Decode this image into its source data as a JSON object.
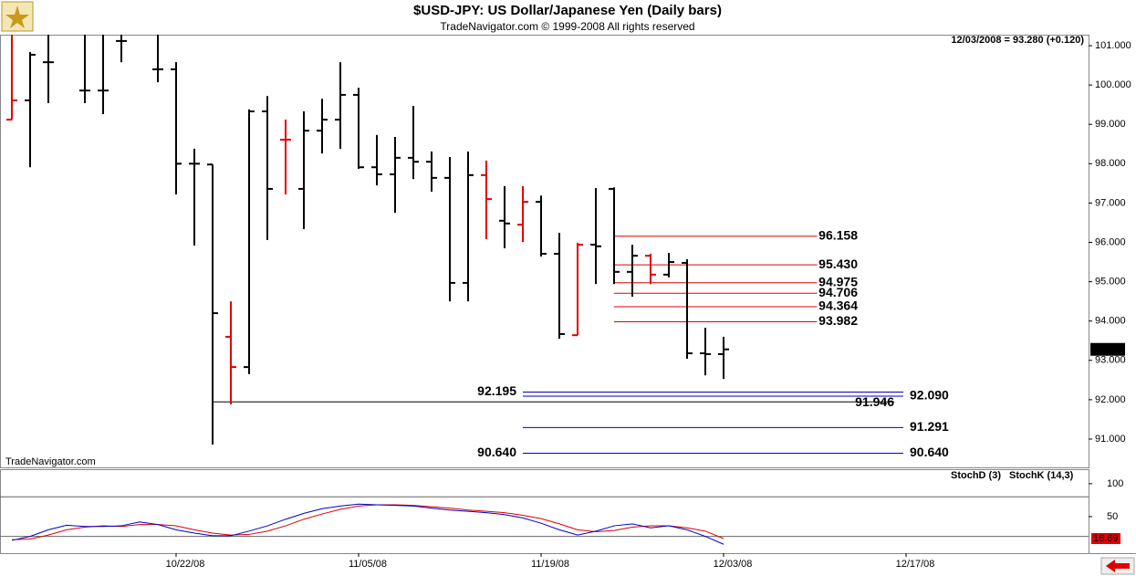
{
  "chart_data": {
    "type": "ohlc",
    "title": "$USD-JPY:  US Dollar/Japanese Yen  (Daily bars)",
    "subtitle": "TradeNavigator.com © 1999-2008 All rights reserved",
    "watermark": "TradeNavigator.com",
    "header_quote": "12/03/2008 = 93.280 (+0.120)",
    "last_price": {
      "value": 93.28,
      "label": "93.280"
    },
    "x": [
      0,
      1,
      2,
      4,
      5,
      6,
      8,
      9,
      10,
      11,
      12,
      13,
      14,
      15,
      16,
      17,
      18,
      19,
      20,
      21,
      22,
      23,
      24,
      25,
      26,
      27,
      28,
      29,
      30,
      31,
      32,
      33,
      34,
      35,
      36,
      37,
      38,
      39
    ],
    "open": [
      99.12,
      99.61,
      100.58,
      99.86,
      99.86,
      101.12,
      100.4,
      100.4,
      98.0,
      97.98,
      93.6,
      92.83,
      99.33,
      98.61,
      97.36,
      98.84,
      99.12,
      99.75,
      97.91,
      97.73,
      98.15,
      98.05,
      97.64,
      94.97,
      97.71,
      96.55,
      96.45,
      97.03,
      95.71,
      93.64,
      95.94,
      97.36,
      95.25,
      95.66,
      95.18,
      95.48,
      93.18,
      93.16
    ],
    "high": [
      101.28,
      100.84,
      101.28,
      101.28,
      101.28,
      101.28,
      101.28,
      100.58,
      98.38,
      97.98,
      94.5,
      99.38,
      99.72,
      99.12,
      99.33,
      99.65,
      100.58,
      99.93,
      98.73,
      98.68,
      99.47,
      98.31,
      98.17,
      98.31,
      98.08,
      97.43,
      97.43,
      97.19,
      96.24,
      95.99,
      97.38,
      97.4,
      95.94,
      95.71,
      95.73,
      95.57,
      93.83,
      93.6
    ],
    "low": [
      99.12,
      97.91,
      99.54,
      99.54,
      99.26,
      100.58,
      100.07,
      97.22,
      95.92,
      90.86,
      91.88,
      92.65,
      96.06,
      97.22,
      96.34,
      98.26,
      98.38,
      97.87,
      97.45,
      96.75,
      97.61,
      97.29,
      94.5,
      94.5,
      96.08,
      95.85,
      96.01,
      95.64,
      93.55,
      93.64,
      94.94,
      94.94,
      94.62,
      94.94,
      95.11,
      93.04,
      92.62,
      92.53
    ],
    "close": [
      99.61,
      100.77,
      100.58,
      99.86,
      99.86,
      101.12,
      100.4,
      98.0,
      98.0,
      94.2,
      92.83,
      99.33,
      97.36,
      98.61,
      98.84,
      99.12,
      99.75,
      97.91,
      97.73,
      98.15,
      98.05,
      97.64,
      94.97,
      97.71,
      97.1,
      96.48,
      97.03,
      95.71,
      93.67,
      95.94,
      95.9,
      95.25,
      95.66,
      95.18,
      95.5,
      93.18,
      93.16,
      93.28
    ],
    "colors": [
      "#e00000",
      "#000000",
      "#000000",
      "#000000",
      "#000000",
      "#000000",
      "#000000",
      "#000000",
      "#000000",
      "#000000",
      "#e00000",
      "#000000",
      "#000000",
      "#e00000",
      "#000000",
      "#000000",
      "#000000",
      "#000000",
      "#000000",
      "#000000",
      "#000000",
      "#000000",
      "#000000",
      "#000000",
      "#e00000",
      "#000000",
      "#e00000",
      "#000000",
      "#000000",
      "#e00000",
      "#000000",
      "#000000",
      "#000000",
      "#e00000",
      "#000000",
      "#000000",
      "#000000",
      "#000000"
    ],
    "ylim": [
      90.28,
      101.28
    ],
    "yticks": [
      {
        "value": 91,
        "label": "91.000"
      },
      {
        "value": 92,
        "label": "92.000"
      },
      {
        "value": 93,
        "label": "93.000"
      },
      {
        "value": 94,
        "label": "94.000"
      },
      {
        "value": 95,
        "label": "95.000"
      },
      {
        "value": 96,
        "label": "96.000"
      },
      {
        "value": 97,
        "label": "97.000"
      },
      {
        "value": 98,
        "label": "98.000"
      },
      {
        "value": 99,
        "label": "99.000"
      },
      {
        "value": 100,
        "label": "100.000"
      },
      {
        "value": 101,
        "label": "101.000"
      }
    ],
    "xticks": [
      {
        "value": 9,
        "label": "10/22/08"
      },
      {
        "value": 19,
        "label": "11/05/08"
      },
      {
        "value": 29,
        "label": "11/19/08"
      },
      {
        "value": 39,
        "label": "12/03/08"
      },
      {
        "value": 49,
        "label": "12/17/08"
      }
    ],
    "levels": [
      {
        "value": 96.158,
        "label": "96.158",
        "color": "#e00000",
        "group": "red",
        "side": "right"
      },
      {
        "value": 95.43,
        "label": "95.430",
        "color": "#e00000",
        "group": "red",
        "side": "right"
      },
      {
        "value": 94.975,
        "label": "94.975",
        "color": "#e00000",
        "group": "red",
        "side": "right"
      },
      {
        "value": 94.706,
        "label": "94.706",
        "color": "#e00000",
        "group": "red",
        "side": "right"
      },
      {
        "value": 94.364,
        "label": "94.364",
        "color": "#e00000",
        "group": "red",
        "side": "right"
      },
      {
        "value": 93.982,
        "label": "93.982",
        "color": "#e00000",
        "group": "red",
        "side": "right"
      },
      {
        "value": 92.195,
        "label": "92.195",
        "color": "#0000cc",
        "group": "blue",
        "side": "left"
      },
      {
        "value": 92.09,
        "label": "92.090",
        "color": "#0000cc",
        "group": "blue",
        "side": "right"
      },
      {
        "value": 91.946,
        "label": "91.946",
        "color": "#000000",
        "group": "black",
        "side": "right"
      },
      {
        "value": 91.291,
        "label": "91.291",
        "color": "#0000cc",
        "group": "blue",
        "side": "right"
      },
      {
        "value": 90.64,
        "label": "90.640",
        "color": "#0000cc",
        "group": "blue",
        "side": "both"
      }
    ],
    "stoch": {
      "x": [
        0,
        1,
        2,
        3,
        4,
        5,
        6,
        7,
        8,
        9,
        10,
        11,
        12,
        13,
        14,
        15,
        16,
        17,
        18,
        19,
        20,
        21,
        22,
        23,
        24,
        25,
        26,
        27,
        28,
        29,
        30,
        31,
        32,
        33,
        34,
        35,
        36,
        37,
        38,
        39
      ],
      "ylim": [
        -5.5,
        122
      ],
      "yticks": [
        50,
        100
      ],
      "reference_lines": [
        80,
        20
      ],
      "series": [
        {
          "name": "StochD (3)",
          "color": "#e00000",
          "values": [
            15,
            16,
            22,
            30,
            34,
            36,
            35,
            38,
            38,
            36,
            30,
            25,
            22,
            23,
            28,
            36,
            46,
            54,
            61,
            66,
            68,
            68,
            67,
            65,
            63,
            60,
            58,
            56,
            52,
            47,
            39,
            30,
            27,
            29,
            34,
            36,
            36,
            33,
            28,
            16.69
          ]
        },
        {
          "name": "StochK (14,3)",
          "color": "#0000cc",
          "values": [
            14,
            20,
            30,
            37,
            35,
            35,
            36,
            42,
            38,
            30,
            25,
            21,
            21,
            28,
            36,
            46,
            55,
            62,
            66,
            69,
            68,
            67,
            66,
            63,
            60,
            58,
            56,
            53,
            48,
            40,
            30,
            22,
            28,
            36,
            39,
            33,
            36,
            30,
            20,
            8
          ]
        }
      ]
    }
  }
}
